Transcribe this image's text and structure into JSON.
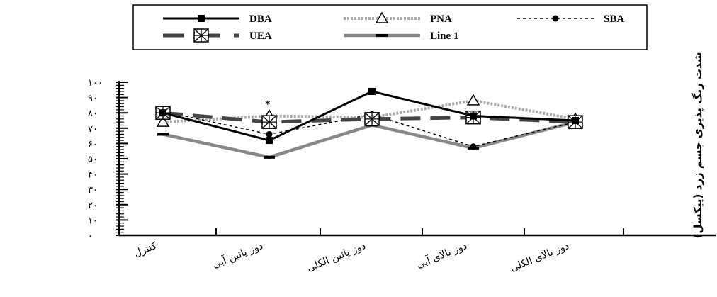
{
  "chart_data": {
    "type": "line",
    "ylabel": "شدت رنگ پذیری جسم زرد (پیکسل)",
    "ylim": [
      0,
      100
    ],
    "yticks": [
      "۰",
      "۱۰",
      "۲۰",
      "۳۰",
      "۴۰",
      "۵۰",
      "۶۰",
      "۷۰",
      "۸۰",
      "۹۰",
      "۱۰۰"
    ],
    "categories": [
      "کنترل",
      "دوز پائین آبی",
      "دوز پائین الکلی",
      "دوز بالای آبی",
      "دوز بالای الکلی"
    ],
    "annotation": "*",
    "legend_position": "top",
    "series": [
      {
        "name": "DBA",
        "x": [
          0,
          1,
          2,
          3,
          4
        ],
        "values": [
          80,
          62,
          94,
          78,
          75
        ],
        "color": "#000000",
        "style": "solid",
        "marker": "square"
      },
      {
        "name": "PNA",
        "x": [
          0,
          1,
          2,
          3,
          4
        ],
        "values": [
          74,
          78,
          77,
          88,
          76
        ],
        "color": "#aaaaaa",
        "style": "dotted",
        "marker": "triangle"
      },
      {
        "name": "SBA",
        "x": [
          0,
          1,
          2,
          3,
          4
        ],
        "values": [
          81,
          66,
          79,
          58,
          74
        ],
        "color": "#000000",
        "style": "dashed",
        "marker": "circle"
      },
      {
        "name": "UEA",
        "x": [
          0,
          1,
          2,
          3,
          4
        ],
        "values": [
          80,
          74,
          76,
          77,
          74
        ],
        "color": "#444444",
        "style": "dashed-thick",
        "marker": "xbox"
      },
      {
        "name": "Line 1",
        "x": [
          0,
          1,
          2,
          3,
          4
        ],
        "values": [
          66,
          51,
          72,
          57,
          74
        ],
        "color": "#888888",
        "style": "solid-thick",
        "marker": "dash"
      }
    ]
  }
}
